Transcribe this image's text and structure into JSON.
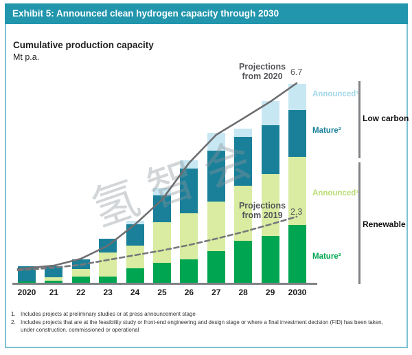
{
  "exhibit": {
    "title": "Exhibit 5: Announced clean hydrogen capacity through 2030"
  },
  "chart": {
    "title": "Cumulative production capacity",
    "unit": "Mt p.a.",
    "annotations": {
      "proj2020": {
        "line1": "Projections",
        "line2": "from 2020",
        "value": "6.7"
      },
      "proj2019": {
        "line1": "Projections",
        "line2": "from 2019",
        "value": "2.3"
      }
    },
    "legend": {
      "low_carbon": {
        "group": "Low carbon",
        "announced": "Announced¹",
        "mature": "Mature²"
      },
      "renewable": {
        "group": "Renewable",
        "announced": "Announced¹",
        "mature": "Mature²"
      }
    },
    "footnotes": [
      {
        "num": "1.",
        "text": "Includes projects at preliminary studies or at press announcement stage"
      },
      {
        "num": "2.",
        "text": "Includes projects that are at the feasibility study or front-end engineering and design stage or where a final investment decision (FID) has been taken, under construction, commissioned or operational"
      }
    ]
  },
  "watermark": "氢智会",
  "colors": {
    "header_teal": "#2196ad",
    "frame_border": "#7cc2d2",
    "axis_gray": "#808285",
    "annotation_gray": "#55565a"
  },
  "chart_data": {
    "type": "bar",
    "stacked": true,
    "title": "Cumulative production capacity",
    "ylabel": "Mt p.a.",
    "ylim": [
      0,
      7
    ],
    "grid": false,
    "legend_position": "right",
    "categories": [
      "2020",
      "21",
      "22",
      "23",
      "24",
      "25",
      "26",
      "27",
      "28",
      "29",
      "2030"
    ],
    "series": [
      {
        "key": "mature-renewable",
        "name": "Mature (Renewable)",
        "color": "#00a551",
        "values": [
          0.1,
          0.12,
          0.26,
          0.26,
          0.53,
          0.71,
          0.83,
          1.11,
          1.45,
          1.61,
          1.98
        ]
      },
      {
        "key": "announced-renewable",
        "name": "Announced (Renewable)",
        "color": "#d9eca1",
        "values": [
          0.0,
          0.12,
          0.25,
          0.8,
          0.76,
          1.36,
          1.54,
          1.66,
          1.84,
          2.07,
          2.28
        ]
      },
      {
        "key": "mature-low-carbon",
        "name": "Mature (Low carbon)",
        "color": "#1a8099",
        "values": [
          0.5,
          0.35,
          0.32,
          0.46,
          0.72,
          0.9,
          1.5,
          1.7,
          1.64,
          1.64,
          1.57
        ]
      },
      {
        "key": "announced-low-carbon",
        "name": "Announced (Low carbon)",
        "color": "#c7e7f3",
        "values": [
          0.0,
          0.0,
          0.0,
          0.0,
          0.12,
          0.25,
          0.28,
          0.6,
          0.28,
          0.81,
          0.88
        ]
      }
    ],
    "lines": [
      {
        "key": "projections-from-2020",
        "name": "Projections from 2020",
        "style": "solid",
        "color": "#6d6e71",
        "end_label": "6.7",
        "values": [
          0.51,
          0.62,
          0.85,
          1.29,
          2.0,
          2.83,
          4.06,
          5.0,
          5.55,
          6.11,
          6.73
        ]
      },
      {
        "key": "projections-from-2019",
        "name": "Projections from 2019",
        "style": "dashed",
        "color": "#76777a",
        "end_label": "2.3",
        "values": [
          0.46,
          0.55,
          0.65,
          0.81,
          0.97,
          1.13,
          1.31,
          1.52,
          1.75,
          2.0,
          2.26
        ]
      }
    ]
  }
}
